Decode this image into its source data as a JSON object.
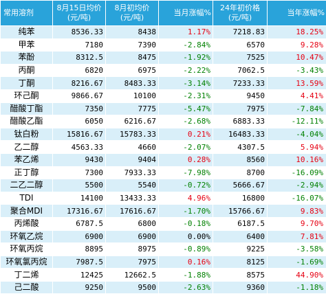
{
  "table": {
    "headers": [
      "常用溶剂",
      "8月15日均价\n(元/吨)",
      "8月初均价\n(元/吨)",
      "当月涨幅%",
      "24年初价格\n(元/吨)",
      "当年涨幅%"
    ],
    "rows": [
      {
        "name": "纯苯",
        "aug15": "8536.33",
        "aug_start": "8438",
        "month_change": "1.17%",
        "start_2024": "7218.83",
        "year_change": "18.25%"
      },
      {
        "name": "甲苯",
        "aug15": "7180",
        "aug_start": "7390",
        "month_change": "-2.84%",
        "start_2024": "6570",
        "year_change": "9.28%"
      },
      {
        "name": "苯酚",
        "aug15": "8312.5",
        "aug_start": "8475",
        "month_change": "-1.92%",
        "start_2024": "7525",
        "year_change": "10.47%"
      },
      {
        "name": "丙酮",
        "aug15": "6820",
        "aug_start": "6975",
        "month_change": "-2.22%",
        "start_2024": "7062.5",
        "year_change": "-3.43%"
      },
      {
        "name": "丁酮",
        "aug15": "8216.67",
        "aug_start": "8483.33",
        "month_change": "-3.14%",
        "start_2024": "7233.33",
        "year_change": "13.59%"
      },
      {
        "name": "环己酮",
        "aug15": "9866.67",
        "aug_start": "10100",
        "month_change": "-2.31%",
        "start_2024": "9450",
        "year_change": "4.41%"
      },
      {
        "name": "醋酸丁酯",
        "aug15": "7350",
        "aug_start": "7775",
        "month_change": "-5.47%",
        "start_2024": "7975",
        "year_change": "-7.84%"
      },
      {
        "name": "醋酸乙酯",
        "aug15": "6050",
        "aug_start": "6216.67",
        "month_change": "-2.68%",
        "start_2024": "6883.33",
        "year_change": "-12.11%"
      },
      {
        "name": "钛白粉",
        "aug15": "15816.67",
        "aug_start": "15783.33",
        "month_change": "0.21%",
        "start_2024": "16483.33",
        "year_change": "-4.04%"
      },
      {
        "name": "乙二醇",
        "aug15": "4563.33",
        "aug_start": "4660",
        "month_change": "-2.07%",
        "start_2024": "4307.5",
        "year_change": "5.94%"
      },
      {
        "name": "苯乙烯",
        "aug15": "9430",
        "aug_start": "9404",
        "month_change": "0.28%",
        "start_2024": "8560",
        "year_change": "10.16%"
      },
      {
        "name": "正丁醇",
        "aug15": "7300",
        "aug_start": "7933.33",
        "month_change": "-7.98%",
        "start_2024": "8700",
        "year_change": "-16.09%"
      },
      {
        "name": "二乙二醇",
        "aug15": "5500",
        "aug_start": "5540",
        "month_change": "-0.72%",
        "start_2024": "5666.67",
        "year_change": "-2.94%"
      },
      {
        "name": "TDI",
        "aug15": "14100",
        "aug_start": "13433.33",
        "month_change": "4.96%",
        "start_2024": "16800",
        "year_change": "-16.07%"
      },
      {
        "name": "聚合MDI",
        "aug15": "17316.67",
        "aug_start": "17616.67",
        "month_change": "-1.70%",
        "start_2024": "15766.67",
        "year_change": "9.83%"
      },
      {
        "name": "丙烯酸",
        "aug15": "6787.5",
        "aug_start": "6800",
        "month_change": "-0.18%",
        "start_2024": "6187.5",
        "year_change": "9.70%"
      },
      {
        "name": "环氧乙烷",
        "aug15": "6900",
        "aug_start": "6900",
        "month_change": "0.00%",
        "start_2024": "6400",
        "year_change": "7.81%"
      },
      {
        "name": "环氧丙烷",
        "aug15": "8895",
        "aug_start": "8975",
        "month_change": "-0.89%",
        "start_2024": "9225",
        "year_change": "-3.58%"
      },
      {
        "name": "环氧氯丙烷",
        "aug15": "7987.5",
        "aug_start": "7975",
        "month_change": "0.16%",
        "start_2024": "8125",
        "year_change": "-1.69%"
      },
      {
        "name": "丁二烯",
        "aug15": "12425",
        "aug_start": "12662.5",
        "month_change": "-1.88%",
        "start_2024": "8575",
        "year_change": "44.90%"
      },
      {
        "name": "己二酸",
        "aug15": "9250",
        "aug_start": "9500",
        "month_change": "-2.63%",
        "start_2024": "9360",
        "year_change": "-1.18%"
      }
    ]
  },
  "colors": {
    "header_bg": "#29a3da",
    "header_text": "#ffffff",
    "row_alt_bg": "#d9eff9",
    "positive_text": "#e60012",
    "negative_text": "#008000"
  }
}
